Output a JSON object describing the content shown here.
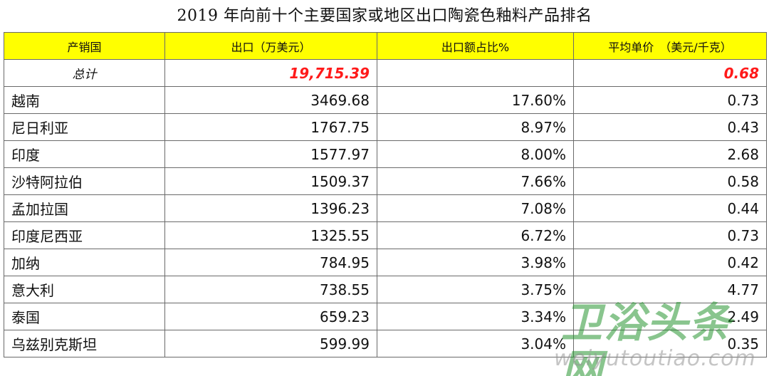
{
  "title": "2019 年向前十个主要国家或地区出口陶瓷色釉料产品排名",
  "headers": {
    "country": "产销国",
    "export": "出口（万美元）",
    "share": "出口额占比%",
    "price": "平均单价　（美元/千克）"
  },
  "total": {
    "label": "总计",
    "export": "19,715.39",
    "share": "",
    "price": "0.68"
  },
  "rows": [
    {
      "country": "越南",
      "export": "3469.68",
      "share": "17.60%",
      "price": "0.73"
    },
    {
      "country": "尼日利亚",
      "export": "1767.75",
      "share": "8.97%",
      "price": "0.43"
    },
    {
      "country": "印度",
      "export": "1577.97",
      "share": "8.00%",
      "price": "2.68"
    },
    {
      "country": "沙特阿拉伯",
      "export": "1509.37",
      "share": "7.66%",
      "price": "0.58"
    },
    {
      "country": "孟加拉国",
      "export": "1396.23",
      "share": "7.08%",
      "price": "0.44"
    },
    {
      "country": "印度尼西亚",
      "export": "1325.55",
      "share": "6.72%",
      "price": "0.73"
    },
    {
      "country": "加纳",
      "export": "784.95",
      "share": "3.98%",
      "price": "0.42"
    },
    {
      "country": "意大利",
      "export": "738.55",
      "share": "3.75%",
      "price": "4.77"
    },
    {
      "country": "泰国",
      "export": "659.23",
      "share": "3.34%",
      "price": "2.49"
    },
    {
      "country": "乌兹别克斯坦",
      "export": "599.99",
      "share": "3.04%",
      "price": "0.35"
    }
  ],
  "watermark": {
    "text_cn": "卫浴头条网",
    "text_en": "weiyutoutiao.com"
  },
  "colors": {
    "header_bg": "#ffff00",
    "total_highlight": "#ff1a1a",
    "watermark_green": "#2a9632"
  }
}
